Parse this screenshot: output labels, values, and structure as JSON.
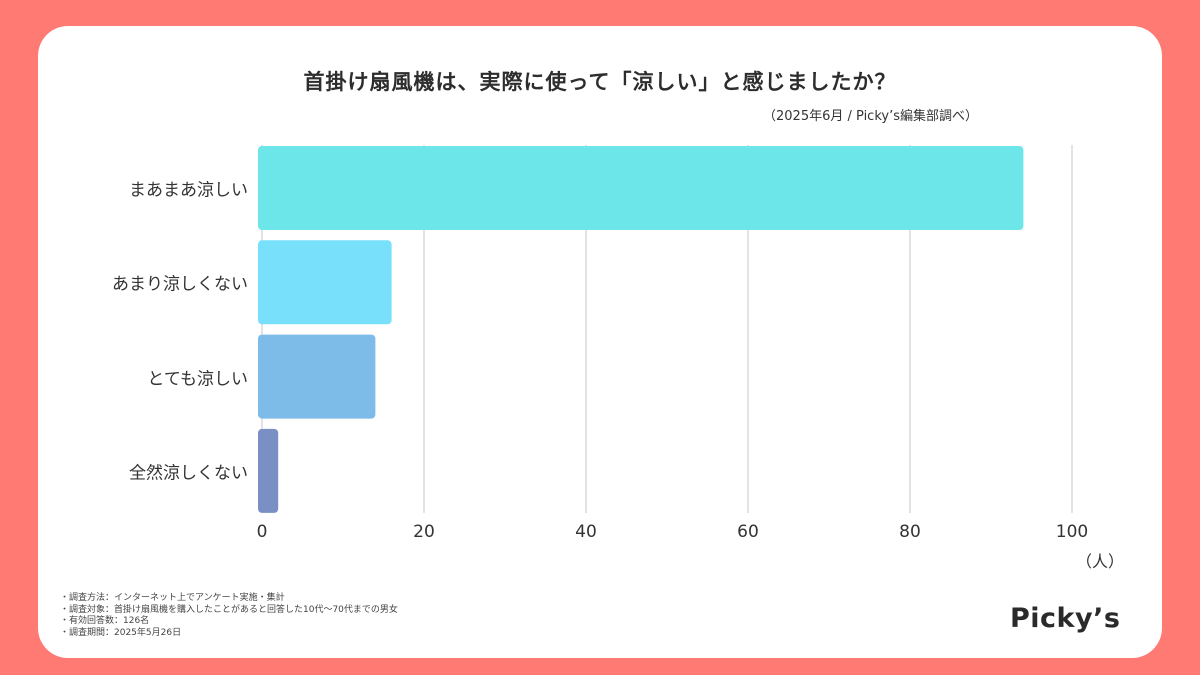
{
  "header": {
    "title": "首掛け扇風機は、実際に使って「涼しい」と感じましたか？",
    "subtitle": "（2025年6月 / Picky’s編集部調べ）"
  },
  "chart_data": {
    "type": "bar",
    "orientation": "horizontal",
    "categories": [
      "まあまあ涼しい",
      "あまり涼しくない",
      "とても涼しい",
      "全然涼しくない"
    ],
    "values": [
      94,
      16,
      14,
      2
    ],
    "colors": [
      "#6CE6E8",
      "#79E0FB",
      "#7DBBE8",
      "#7A8FC4"
    ],
    "xlim": [
      0,
      100
    ],
    "xticks": [
      "0",
      "20",
      "40",
      "60",
      "80",
      "100"
    ],
    "unit_label": "（人）",
    "grid": true,
    "grid_color": "#D0D0D0"
  },
  "footer": {
    "notes": [
      "・調査方法：インターネット上でアンケート実施・集計",
      "・調査対象：首掛け扇風機を購入したことがあると回答した10代〜70代までの男女",
      "・有効回答数：126名",
      "・調査期間：2025年5月26日"
    ],
    "logo": "Picky’s"
  },
  "colors": {
    "background": "#FF7A72",
    "card": "#FFFFFF",
    "text": "#333333"
  }
}
